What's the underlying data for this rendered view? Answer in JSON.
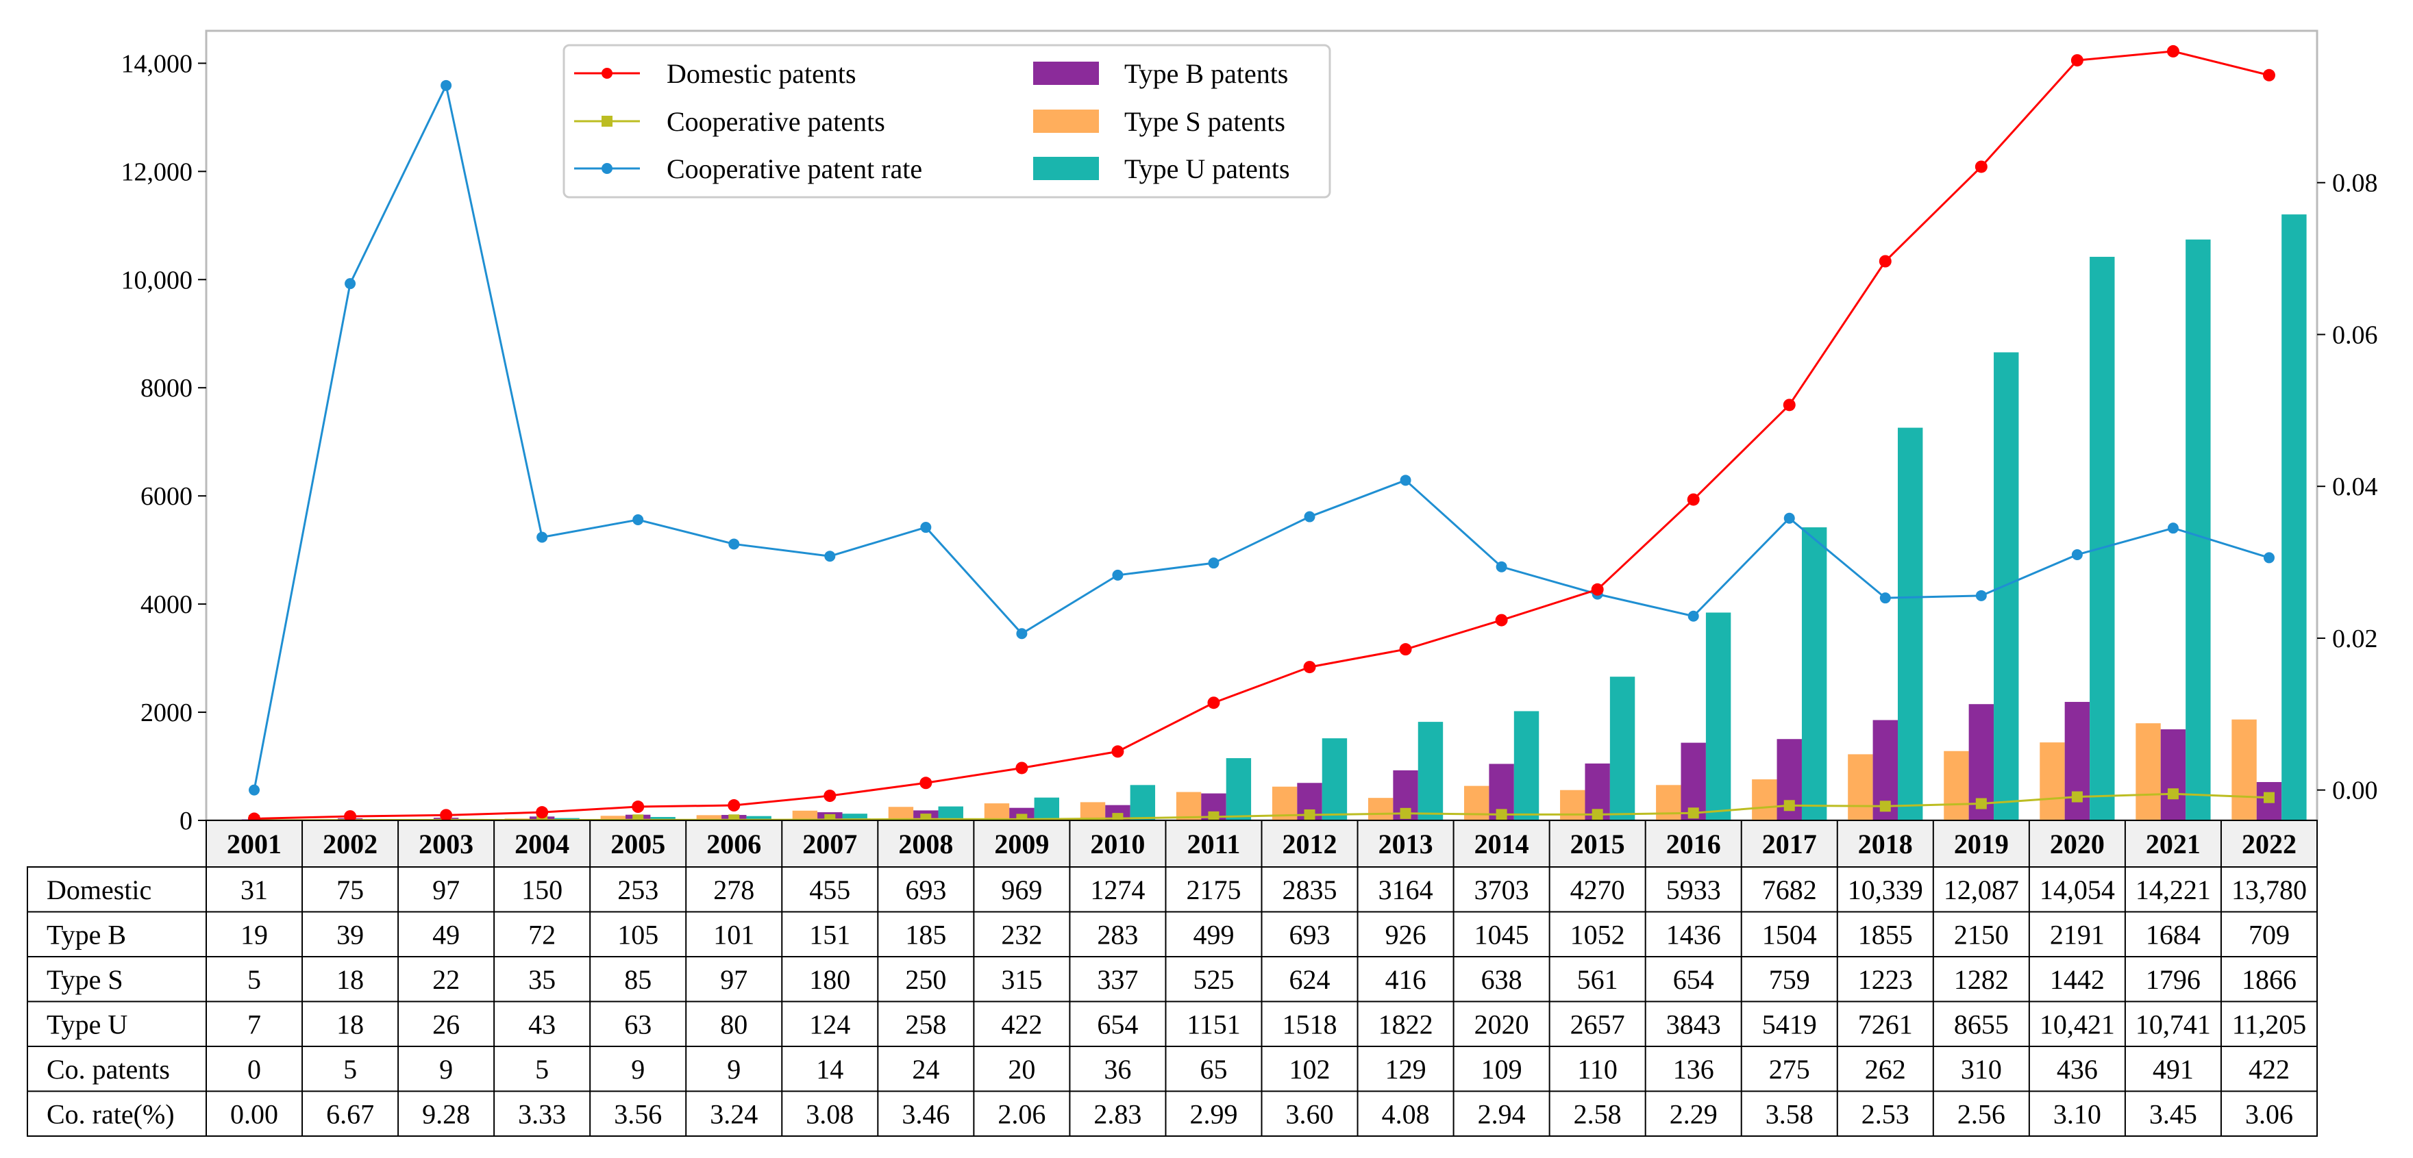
{
  "chart_data": {
    "type": "bar",
    "categories": [
      "2001",
      "2002",
      "2003",
      "2004",
      "2005",
      "2006",
      "2007",
      "2008",
      "2009",
      "2010",
      "2011",
      "2012",
      "2013",
      "2014",
      "2015",
      "2016",
      "2017",
      "2018",
      "2019",
      "2020",
      "2021",
      "2022"
    ],
    "left_axis": {
      "ylim": [
        0,
        14600
      ],
      "ticks": [
        0,
        2000,
        4000,
        6000,
        8000,
        10000,
        12000,
        14000
      ],
      "tick_labels": [
        "0",
        "2000",
        "4000",
        "6000",
        "8000",
        "10,000",
        "12,000",
        "14,000"
      ]
    },
    "right_axis": {
      "ylim": [
        -0.004,
        0.1
      ],
      "ticks": [
        0.0,
        0.02,
        0.04,
        0.06,
        0.08
      ],
      "tick_labels": [
        "0.00",
        "0.02",
        "0.04",
        "0.06",
        "0.08"
      ]
    },
    "series": [
      {
        "key": "domestic",
        "name": "Domestic patents",
        "kind": "line",
        "axis": "left",
        "color": "#ff0000",
        "marker": "circle",
        "values": [
          31,
          75,
          97,
          150,
          253,
          278,
          455,
          693,
          969,
          1274,
          2175,
          2835,
          3164,
          3703,
          4270,
          5933,
          7682,
          10339,
          12087,
          14054,
          14221,
          13780
        ]
      },
      {
        "key": "cooperative",
        "name": "Cooperative patents",
        "kind": "line",
        "axis": "left",
        "color": "#bcbd22",
        "marker": "square",
        "values": [
          0,
          5,
          9,
          5,
          9,
          9,
          14,
          24,
          20,
          36,
          65,
          102,
          129,
          109,
          110,
          136,
          275,
          262,
          310,
          436,
          491,
          422
        ]
      },
      {
        "key": "rate",
        "name": "Cooperative patent rate",
        "kind": "line",
        "axis": "right",
        "color": "#1f8fd2",
        "marker": "circle",
        "values": [
          0.0,
          0.0667,
          0.0928,
          0.0333,
          0.0356,
          0.0324,
          0.0308,
          0.0346,
          0.0206,
          0.0283,
          0.0299,
          0.036,
          0.0408,
          0.0294,
          0.0258,
          0.0229,
          0.0358,
          0.0253,
          0.0256,
          0.031,
          0.0345,
          0.0306
        ]
      },
      {
        "key": "typeS",
        "name": "Type S patents",
        "kind": "bar",
        "axis": "left",
        "color": "#ffae5c",
        "values": [
          5,
          18,
          22,
          35,
          85,
          97,
          180,
          250,
          315,
          337,
          525,
          624,
          416,
          638,
          561,
          654,
          759,
          1223,
          1282,
          1442,
          1796,
          1866
        ]
      },
      {
        "key": "typeB",
        "name": "Type B patents",
        "kind": "bar",
        "axis": "left",
        "color": "#8b2b9a",
        "values": [
          19,
          39,
          49,
          72,
          105,
          101,
          151,
          185,
          232,
          283,
          499,
          693,
          926,
          1045,
          1052,
          1436,
          1504,
          1855,
          2150,
          2191,
          1684,
          709
        ]
      },
      {
        "key": "typeU",
        "name": "Type U patents",
        "kind": "bar",
        "axis": "left",
        "color": "#1ab5ad",
        "values": [
          7,
          18,
          26,
          43,
          63,
          80,
          124,
          258,
          422,
          654,
          1151,
          1518,
          1822,
          2020,
          2657,
          3843,
          5419,
          7261,
          8655,
          10421,
          10741,
          11205
        ]
      }
    ],
    "legend": {
      "placement": "top-center",
      "entries": [
        "Domestic patents",
        "Cooperative patents",
        "Cooperative patent rate",
        "Type B patents",
        "Type S patents",
        "Type U patents"
      ]
    },
    "table": {
      "rows": [
        {
          "label": "Domestic",
          "cells": [
            "31",
            "75",
            "97",
            "150",
            "253",
            "278",
            "455",
            "693",
            "969",
            "1274",
            "2175",
            "2835",
            "3164",
            "3703",
            "4270",
            "5933",
            "7682",
            "10,339",
            "12,087",
            "14,054",
            "14,221",
            "13,780"
          ]
        },
        {
          "label": "Type B",
          "cells": [
            "19",
            "39",
            "49",
            "72",
            "105",
            "101",
            "151",
            "185",
            "232",
            "283",
            "499",
            "693",
            "926",
            "1045",
            "1052",
            "1436",
            "1504",
            "1855",
            "2150",
            "2191",
            "1684",
            "709"
          ]
        },
        {
          "label": "Type S",
          "cells": [
            "5",
            "18",
            "22",
            "35",
            "85",
            "97",
            "180",
            "250",
            "315",
            "337",
            "525",
            "624",
            "416",
            "638",
            "561",
            "654",
            "759",
            "1223",
            "1282",
            "1442",
            "1796",
            "1866"
          ]
        },
        {
          "label": "Type U",
          "cells": [
            "7",
            "18",
            "26",
            "43",
            "63",
            "80",
            "124",
            "258",
            "422",
            "654",
            "1151",
            "1518",
            "1822",
            "2020",
            "2657",
            "3843",
            "5419",
            "7261",
            "8655",
            "10,421",
            "10,741",
            "11,205"
          ]
        },
        {
          "label": "Co. patents",
          "cells": [
            "0",
            "5",
            "9",
            "5",
            "9",
            "9",
            "14",
            "24",
            "20",
            "36",
            "65",
            "102",
            "129",
            "109",
            "110",
            "136",
            "275",
            "262",
            "310",
            "436",
            "491",
            "422"
          ]
        },
        {
          "label": "Co. rate(%)",
          "cells": [
            "0.00",
            "6.67",
            "9.28",
            "3.33",
            "3.56",
            "3.24",
            "3.08",
            "3.46",
            "2.06",
            "2.83",
            "2.99",
            "3.60",
            "4.08",
            "2.94",
            "2.58",
            "2.29",
            "3.58",
            "2.53",
            "2.56",
            "3.10",
            "3.45",
            "3.06"
          ]
        }
      ]
    }
  }
}
